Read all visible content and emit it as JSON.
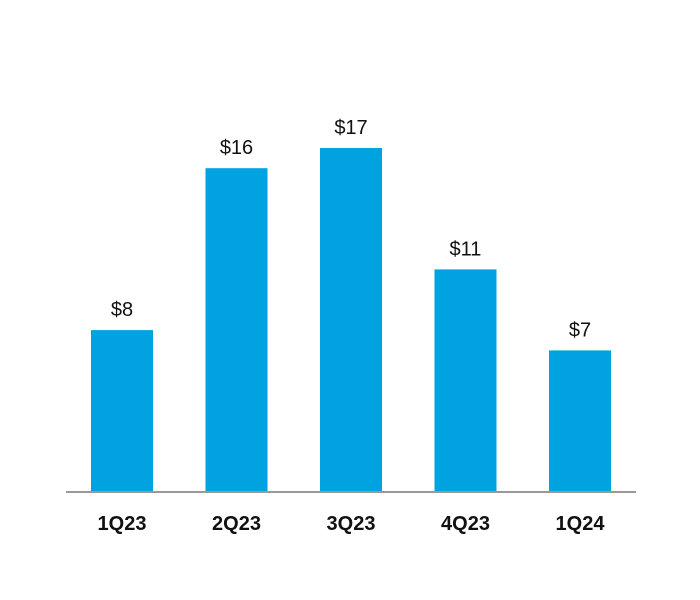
{
  "chart_data": {
    "type": "bar",
    "categories": [
      "1Q23",
      "2Q23",
      "3Q23",
      "4Q23",
      "1Q24"
    ],
    "values": [
      8,
      16,
      17,
      11,
      7
    ],
    "data_labels": [
      "$8",
      "$16",
      "$17",
      "$11",
      "$7"
    ],
    "title": "",
    "xlabel": "",
    "ylabel": "",
    "ylim": [
      0,
      17
    ],
    "grid": false,
    "legend": "none",
    "bar_color": "#00a3e0",
    "axis_color": "#999999"
  }
}
